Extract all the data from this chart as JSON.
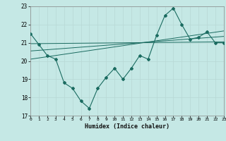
{
  "xlabel": "Humidex (Indice chaleur)",
  "ylabel": "",
  "bg_color": "#c5e8e5",
  "line_color": "#1a6b60",
  "grid_color": "#aed4d0",
  "x_values": [
    0,
    1,
    2,
    3,
    4,
    5,
    6,
    7,
    8,
    9,
    10,
    11,
    12,
    13,
    14,
    15,
    16,
    17,
    18,
    19,
    20,
    21,
    22,
    23
  ],
  "y_main": [
    21.5,
    20.9,
    20.3,
    20.1,
    18.8,
    18.5,
    17.8,
    17.4,
    18.5,
    19.1,
    19.6,
    19.0,
    19.6,
    20.3,
    20.1,
    21.4,
    22.5,
    22.9,
    22.0,
    21.2,
    21.3,
    21.6,
    21.0,
    21.0
  ],
  "trend1_x": [
    0,
    23
  ],
  "trend1_y": [
    20.95,
    21.05
  ],
  "trend2_x": [
    0,
    23
  ],
  "trend2_y": [
    20.55,
    21.35
  ],
  "trend3_x": [
    0,
    23
  ],
  "trend3_y": [
    20.1,
    21.65
  ],
  "ylim": [
    17,
    23
  ],
  "xlim": [
    0,
    23
  ],
  "yticks": [
    17,
    18,
    19,
    20,
    21,
    22,
    23
  ],
  "xticks": [
    0,
    1,
    2,
    3,
    4,
    5,
    6,
    7,
    8,
    9,
    10,
    11,
    12,
    13,
    14,
    15,
    16,
    17,
    18,
    19,
    20,
    21,
    22,
    23
  ]
}
